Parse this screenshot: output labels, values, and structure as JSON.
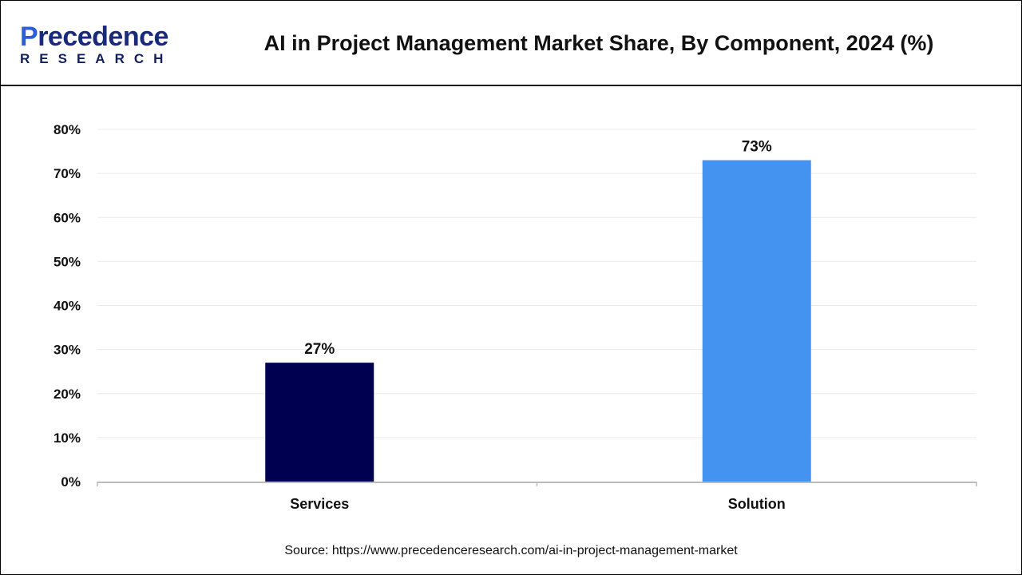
{
  "logo": {
    "line1": "Precedence",
    "line2": "RESEARCH"
  },
  "header": {
    "title": "AI in Project Management Market Share, By Component, 2024 (%)"
  },
  "source": "Source: https://www.precedenceresearch.com/ai-in-project-management-market",
  "chart_data": {
    "type": "bar",
    "title": "AI in Project Management Market Share, By Component, 2024 (%)",
    "categories": [
      "Services",
      "Solution"
    ],
    "values": [
      27,
      73
    ],
    "data_labels": [
      "27%",
      "73%"
    ],
    "colors": [
      "#000050",
      "#4593f0"
    ],
    "ylim": [
      0,
      80
    ],
    "yticks": [
      "0%",
      "10%",
      "20%",
      "30%",
      "40%",
      "50%",
      "60%",
      "70%",
      "80%"
    ],
    "grid": true,
    "xlabel": "",
    "ylabel": ""
  }
}
